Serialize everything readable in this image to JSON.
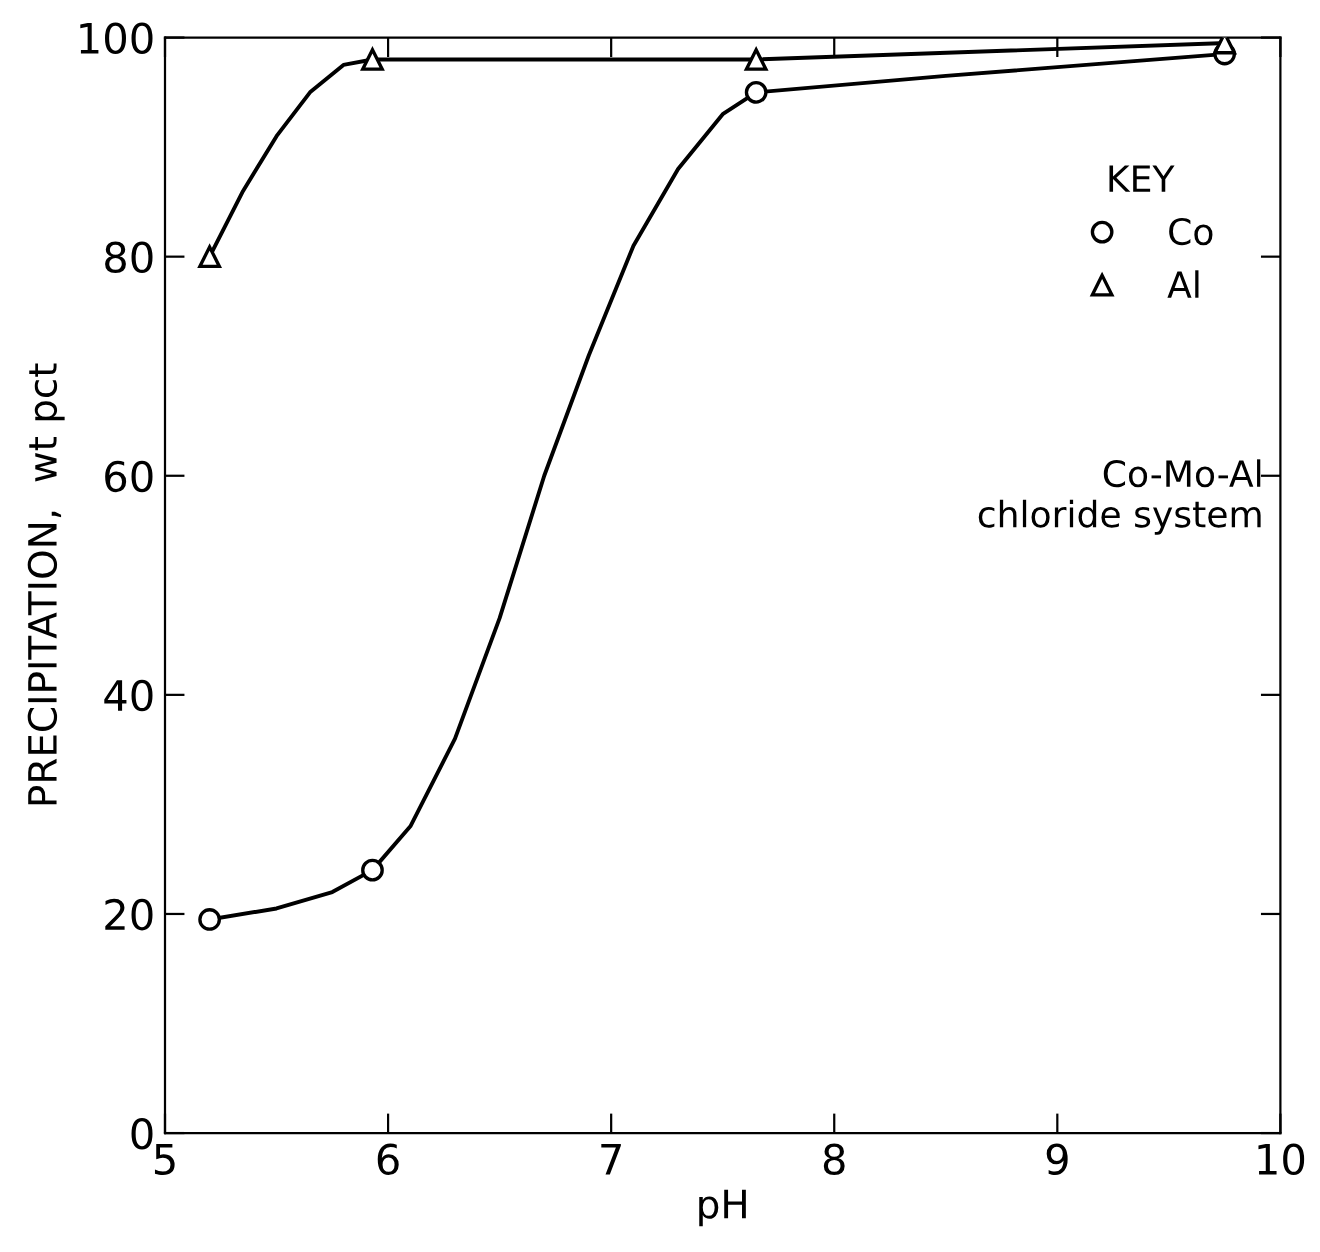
{
  "chart_data": {
    "type": "line",
    "xlabel": "pH",
    "ylabel": "PRECIPITATION,  wt pct",
    "legend_title": "KEY",
    "series": [
      {
        "name": "Co",
        "type": "scatter",
        "color": "#000000",
        "marker": "circle",
        "x": [
          5.2,
          5.93,
          7.65,
          9.75
        ],
        "values": [
          19.5,
          24,
          95,
          98.5
        ]
      },
      {
        "name": "Al",
        "type": "scatter",
        "color": "#000000",
        "marker": "triangle",
        "x": [
          5.2,
          5.93,
          7.65,
          9.75
        ],
        "values": [
          80,
          98,
          98,
          99.5
        ]
      },
      {
        "color": "#000000",
        "x": [
          5.2,
          5.5,
          5.75,
          5.93,
          6.1,
          6.3,
          6.5,
          6.7,
          6.9,
          7.1,
          7.3,
          7.5,
          7.65,
          8.5,
          9.75
        ],
        "values": [
          19.5,
          20.5,
          22,
          24,
          28,
          36,
          47,
          60,
          71,
          81,
          88,
          93,
          95,
          96.5,
          98.5
        ]
      },
      {
        "color": "#000000",
        "x": [
          5.2,
          5.35,
          5.5,
          5.65,
          5.8,
          5.93,
          7.65,
          9.75
        ],
        "values": [
          80,
          86,
          91,
          95,
          97.5,
          98,
          98,
          99.5
        ]
      }
    ],
    "annotations": [
      "Co-Mo-Al\nchloride system"
    ],
    "xlim": [
      5,
      10
    ],
    "ylim": [
      0,
      100
    ],
    "xticks": [
      5,
      6,
      7,
      8,
      9,
      10
    ],
    "yticks": [
      0,
      20,
      40,
      60,
      80,
      100
    ],
    "legend": "right",
    "grid": false,
    "line_style": "solid"
  }
}
